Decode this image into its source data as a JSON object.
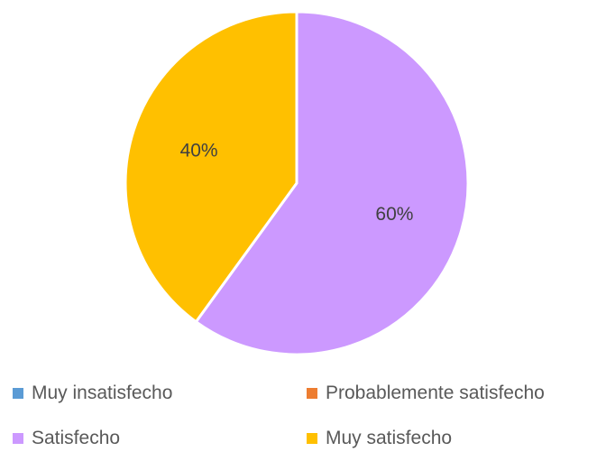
{
  "chart_data": {
    "type": "pie",
    "title": "",
    "categories": [
      "Muy insatisfecho",
      "Probablemente satisfecho",
      "Satisfecho",
      "Muy satisfecho"
    ],
    "values": [
      0,
      0,
      60,
      40
    ],
    "value_labels": [
      "",
      "",
      "60%",
      "40%"
    ],
    "colors": [
      "#5b9bd5",
      "#ed7d31",
      "#cc99ff",
      "#ffc000"
    ],
    "legend_position": "bottom"
  }
}
